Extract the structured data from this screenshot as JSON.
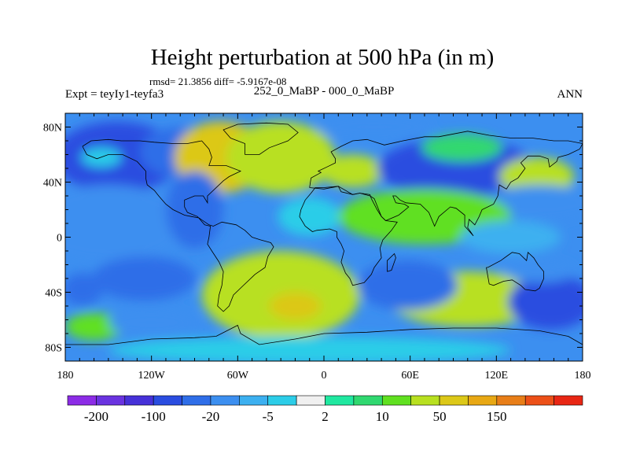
{
  "chart_data": {
    "type": "heatmap",
    "title": "Height perturbation at 500 hPa (in m)",
    "stats_line": "rmsd= 21.3856 diff= -5.9167e-08",
    "experiment_label": "Expt = teyIy1-teyfa3",
    "case_label": "252_0_MaBP - 000_0_MaBP",
    "period_label": "ANN",
    "projection": "cylindrical-equidistant",
    "x_range": [
      -180,
      180
    ],
    "y_range": [
      -90,
      90
    ],
    "x_ticks": [
      {
        "value": -180,
        "label": "180"
      },
      {
        "value": -120,
        "label": "120W"
      },
      {
        "value": -60,
        "label": "60W"
      },
      {
        "value": 0,
        "label": "0"
      },
      {
        "value": 60,
        "label": "60E"
      },
      {
        "value": 120,
        "label": "120E"
      },
      {
        "value": 180,
        "label": "180"
      }
    ],
    "y_ticks": [
      {
        "value": 80,
        "label": "80N"
      },
      {
        "value": 40,
        "label": "40N"
      },
      {
        "value": 0,
        "label": "0"
      },
      {
        "value": -40,
        "label": "40S"
      },
      {
        "value": -80,
        "label": "80S"
      }
    ],
    "colorbar": {
      "colors": [
        "#8c2ce6",
        "#6a33e0",
        "#4631d8",
        "#2a4de0",
        "#2f6ee8",
        "#3c8ff0",
        "#3cb0f0",
        "#2ccde8",
        "#f0f0f0",
        "#20e8a0",
        "#30d870",
        "#60e020",
        "#b8e020",
        "#dcc818",
        "#e8a814",
        "#e87e18",
        "#ec5018",
        "#e82614"
      ],
      "labels": [
        {
          "after_index": 0,
          "text": "-200"
        },
        {
          "after_index": 2,
          "text": "-100"
        },
        {
          "after_index": 4,
          "text": "-20"
        },
        {
          "after_index": 6,
          "text": "-5"
        },
        {
          "after_index": 8,
          "text": "2"
        },
        {
          "after_index": 10,
          "text": "10"
        },
        {
          "after_index": 12,
          "text": "50"
        },
        {
          "after_index": 14,
          "text": "150"
        }
      ]
    },
    "field_anomalies": [
      {
        "lon": -144,
        "lat": 58,
        "rx": 44,
        "ry": 26,
        "value": -75
      },
      {
        "lon": -155,
        "lat": 58,
        "rx": 14,
        "ry": 7,
        "value": -5
      },
      {
        "lon": -100,
        "lat": 62,
        "rx": 28,
        "ry": 18,
        "value": -50
      },
      {
        "lon": -72,
        "lat": 58,
        "rx": 32,
        "ry": 26,
        "value": 55
      },
      {
        "lon": -30,
        "lat": 58,
        "rx": 38,
        "ry": 26,
        "value": 45
      },
      {
        "lon": 20,
        "lat": 48,
        "rx": 22,
        "ry": 12,
        "value": 45
      },
      {
        "lon": 35,
        "lat": 80,
        "rx": 40,
        "ry": 8,
        "value": -15
      },
      {
        "lon": 92,
        "lat": 50,
        "rx": 55,
        "ry": 22,
        "value": -75
      },
      {
        "lon": 96,
        "lat": 65,
        "rx": 28,
        "ry": 10,
        "value": 8
      },
      {
        "lon": 148,
        "lat": 44,
        "rx": 26,
        "ry": 14,
        "value": 28
      },
      {
        "lon": 150,
        "lat": 25,
        "rx": 40,
        "ry": 13,
        "value": -12
      },
      {
        "lon": -150,
        "lat": 10,
        "rx": 55,
        "ry": 28,
        "value": -15
      },
      {
        "lon": -90,
        "lat": 20,
        "rx": 20,
        "ry": 28,
        "value": -30
      },
      {
        "lon": -10,
        "lat": 15,
        "rx": 22,
        "ry": 14,
        "value": -5
      },
      {
        "lon": 70,
        "lat": 15,
        "rx": 60,
        "ry": 20,
        "value": 12
      },
      {
        "lon": 130,
        "lat": 0,
        "rx": 35,
        "ry": 12,
        "value": -8
      },
      {
        "lon": -125,
        "lat": -30,
        "rx": 36,
        "ry": 16,
        "value": -40
      },
      {
        "lon": -168,
        "lat": -38,
        "rx": 14,
        "ry": 12,
        "value": -30
      },
      {
        "lon": -30,
        "lat": -42,
        "rx": 55,
        "ry": 32,
        "value": 42
      },
      {
        "lon": -20,
        "lat": -50,
        "rx": 18,
        "ry": 10,
        "value": 60
      },
      {
        "lon": 100,
        "lat": -45,
        "rx": 55,
        "ry": 20,
        "value": 25
      },
      {
        "lon": 58,
        "lat": -35,
        "rx": 35,
        "ry": 18,
        "value": -50
      },
      {
        "lon": 158,
        "lat": -47,
        "rx": 30,
        "ry": 20,
        "value": -80
      },
      {
        "lon": 150,
        "lat": -25,
        "rx": 25,
        "ry": 8,
        "value": -20
      },
      {
        "lon": -160,
        "lat": -65,
        "rx": 20,
        "ry": 10,
        "value": 12
      },
      {
        "lon": -120,
        "lat": -62,
        "rx": 30,
        "ry": 10,
        "value": -12
      },
      {
        "lon": -10,
        "lat": -82,
        "rx": 140,
        "ry": 10,
        "value": -3
      }
    ],
    "coastlines": [
      [
        [
          -168,
          66
        ],
        [
          -162,
          70
        ],
        [
          -150,
          71
        ],
        [
          -141,
          70
        ],
        [
          -128,
          70
        ],
        [
          -118,
          69
        ],
        [
          -105,
          68
        ],
        [
          -95,
          68
        ],
        [
          -85,
          70
        ],
        [
          -80,
          64
        ],
        [
          -78,
          58
        ],
        [
          -80,
          52
        ],
        [
          -68,
          52
        ],
        [
          -58,
          48
        ],
        [
          -66,
          44
        ],
        [
          -70,
          41
        ],
        [
          -76,
          35
        ],
        [
          -81,
          30
        ],
        [
          -81,
          25
        ],
        [
          -84,
          30
        ],
        [
          -90,
          30
        ],
        [
          -97,
          27
        ],
        [
          -97,
          22
        ],
        [
          -95,
          18
        ],
        [
          -88,
          15
        ],
        [
          -83,
          9
        ],
        [
          -79,
          8
        ],
        [
          -80,
          0
        ],
        [
          -81,
          -5
        ],
        [
          -78,
          -10
        ],
        [
          -73,
          -18
        ],
        [
          -70,
          -25
        ],
        [
          -71,
          -35
        ],
        [
          -73,
          -42
        ],
        [
          -74,
          -50
        ],
        [
          -70,
          -54
        ],
        [
          -66,
          -50
        ],
        [
          -63,
          -42
        ],
        [
          -57,
          -36
        ],
        [
          -48,
          -27
        ],
        [
          -41,
          -22
        ],
        [
          -39,
          -14
        ],
        [
          -35,
          -7
        ],
        [
          -37,
          -4
        ],
        [
          -44,
          -2
        ],
        [
          -50,
          0
        ],
        [
          -55,
          5
        ],
        [
          -61,
          9
        ],
        [
          -71,
          11
        ],
        [
          -77,
          8
        ],
        [
          -80,
          9
        ],
        [
          -87,
          14
        ],
        [
          -92,
          15
        ],
        [
          -97,
          16
        ],
        [
          -105,
          20
        ],
        [
          -110,
          24
        ],
        [
          -115,
          30
        ],
        [
          -118,
          34
        ],
        [
          -123,
          38
        ],
        [
          -124,
          43
        ],
        [
          -124,
          48
        ],
        [
          -130,
          55
        ],
        [
          -140,
          60
        ],
        [
          -150,
          60
        ],
        [
          -158,
          57
        ],
        [
          -165,
          60
        ],
        [
          -168,
          66
        ]
      ],
      [
        [
          -55,
          60
        ],
        [
          -45,
          60
        ],
        [
          -38,
          65
        ],
        [
          -25,
          70
        ],
        [
          -18,
          76
        ],
        [
          -25,
          82
        ],
        [
          -40,
          83
        ],
        [
          -60,
          82
        ],
        [
          -70,
          78
        ],
        [
          -65,
          72
        ],
        [
          -55,
          68
        ],
        [
          -55,
          60
        ]
      ],
      [
        [
          -10,
          36
        ],
        [
          -9,
          43
        ],
        [
          -2,
          47
        ],
        [
          -4,
          48
        ],
        [
          2,
          51
        ],
        [
          8,
          54
        ],
        [
          8,
          57
        ],
        [
          5,
          62
        ],
        [
          12,
          66
        ],
        [
          20,
          70
        ],
        [
          30,
          71
        ],
        [
          42,
          67
        ],
        [
          55,
          70
        ],
        [
          70,
          73
        ],
        [
          80,
          73
        ],
        [
          100,
          77
        ],
        [
          115,
          74
        ],
        [
          130,
          72
        ],
        [
          145,
          72
        ],
        [
          160,
          70
        ],
        [
          170,
          70
        ],
        [
          180,
          68
        ],
        [
          178,
          64
        ],
        [
          170,
          60
        ],
        [
          163,
          58
        ],
        [
          162,
          55
        ],
        [
          157,
          51
        ],
        [
          156,
          57
        ],
        [
          150,
          59
        ],
        [
          142,
          59
        ],
        [
          137,
          54
        ],
        [
          140,
          50
        ],
        [
          135,
          43
        ],
        [
          130,
          40
        ],
        [
          127,
          35
        ],
        [
          122,
          38
        ],
        [
          121,
          30
        ],
        [
          118,
          24
        ],
        [
          110,
          20
        ],
        [
          108,
          15
        ],
        [
          105,
          9
        ],
        [
          101,
          13
        ],
        [
          100,
          7
        ],
        [
          104,
          1
        ],
        [
          98,
          8
        ],
        [
          98,
          16
        ],
        [
          92,
          21
        ],
        [
          88,
          22
        ],
        [
          80,
          15
        ],
        [
          77,
          8
        ],
        [
          73,
          18
        ],
        [
          67,
          24
        ],
        [
          57,
          25
        ],
        [
          53,
          27
        ],
        [
          50,
          30
        ],
        [
          48,
          30
        ],
        [
          50,
          25
        ],
        [
          56,
          24
        ],
        [
          59,
          22
        ],
        [
          52,
          16
        ],
        [
          43,
          12
        ],
        [
          40,
          15
        ],
        [
          35,
          28
        ],
        [
          32,
          30
        ],
        [
          25,
          32
        ],
        [
          20,
          31
        ],
        [
          10,
          37
        ],
        [
          0,
          35
        ],
        [
          -10,
          36
        ]
      ],
      [
        [
          -17,
          15
        ],
        [
          -16,
          20
        ],
        [
          -13,
          27
        ],
        [
          -9,
          32
        ],
        [
          -6,
          36
        ],
        [
          0,
          36
        ],
        [
          10,
          37
        ],
        [
          12,
          33
        ],
        [
          20,
          31
        ],
        [
          25,
          32
        ],
        [
          32,
          31
        ],
        [
          33,
          28
        ],
        [
          37,
          20
        ],
        [
          40,
          15
        ],
        [
          43,
          12
        ],
        [
          51,
          11
        ],
        [
          47,
          5
        ],
        [
          41,
          -2
        ],
        [
          39,
          -8
        ],
        [
          40,
          -15
        ],
        [
          35,
          -22
        ],
        [
          33,
          -27
        ],
        [
          28,
          -33
        ],
        [
          20,
          -35
        ],
        [
          18,
          -30
        ],
        [
          15,
          -26
        ],
        [
          12,
          -18
        ],
        [
          14,
          -10
        ],
        [
          12,
          -5
        ],
        [
          9,
          0
        ],
        [
          9,
          4
        ],
        [
          4,
          6
        ],
        [
          -5,
          5
        ],
        [
          -8,
          4
        ],
        [
          -13,
          8
        ],
        [
          -17,
          15
        ]
      ],
      [
        [
          113,
          -22
        ],
        [
          115,
          -34
        ],
        [
          118,
          -35
        ],
        [
          125,
          -32
        ],
        [
          131,
          -31
        ],
        [
          137,
          -35
        ],
        [
          140,
          -38
        ],
        [
          147,
          -39
        ],
        [
          150,
          -37
        ],
        [
          153,
          -30
        ],
        [
          153,
          -25
        ],
        [
          149,
          -20
        ],
        [
          146,
          -15
        ],
        [
          142,
          -11
        ],
        [
          141,
          -17
        ],
        [
          136,
          -12
        ],
        [
          131,
          -11
        ],
        [
          127,
          -14
        ],
        [
          123,
          -17
        ],
        [
          114,
          -22
        ],
        [
          113,
          -22
        ]
      ],
      [
        [
          44,
          -25
        ],
        [
          47,
          -24
        ],
        [
          50,
          -15
        ],
        [
          49,
          -12
        ],
        [
          44,
          -17
        ],
        [
          44,
          -25
        ]
      ],
      [
        [
          -180,
          -78
        ],
        [
          -150,
          -78
        ],
        [
          -120,
          -74
        ],
        [
          -90,
          -73
        ],
        [
          -75,
          -72
        ],
        [
          -60,
          -64
        ],
        [
          -58,
          -70
        ],
        [
          -45,
          -78
        ],
        [
          -20,
          -74
        ],
        [
          0,
          -70
        ],
        [
          30,
          -69
        ],
        [
          60,
          -67
        ],
        [
          90,
          -66
        ],
        [
          120,
          -66
        ],
        [
          150,
          -68
        ],
        [
          170,
          -72
        ],
        [
          180,
          -78
        ]
      ]
    ]
  }
}
